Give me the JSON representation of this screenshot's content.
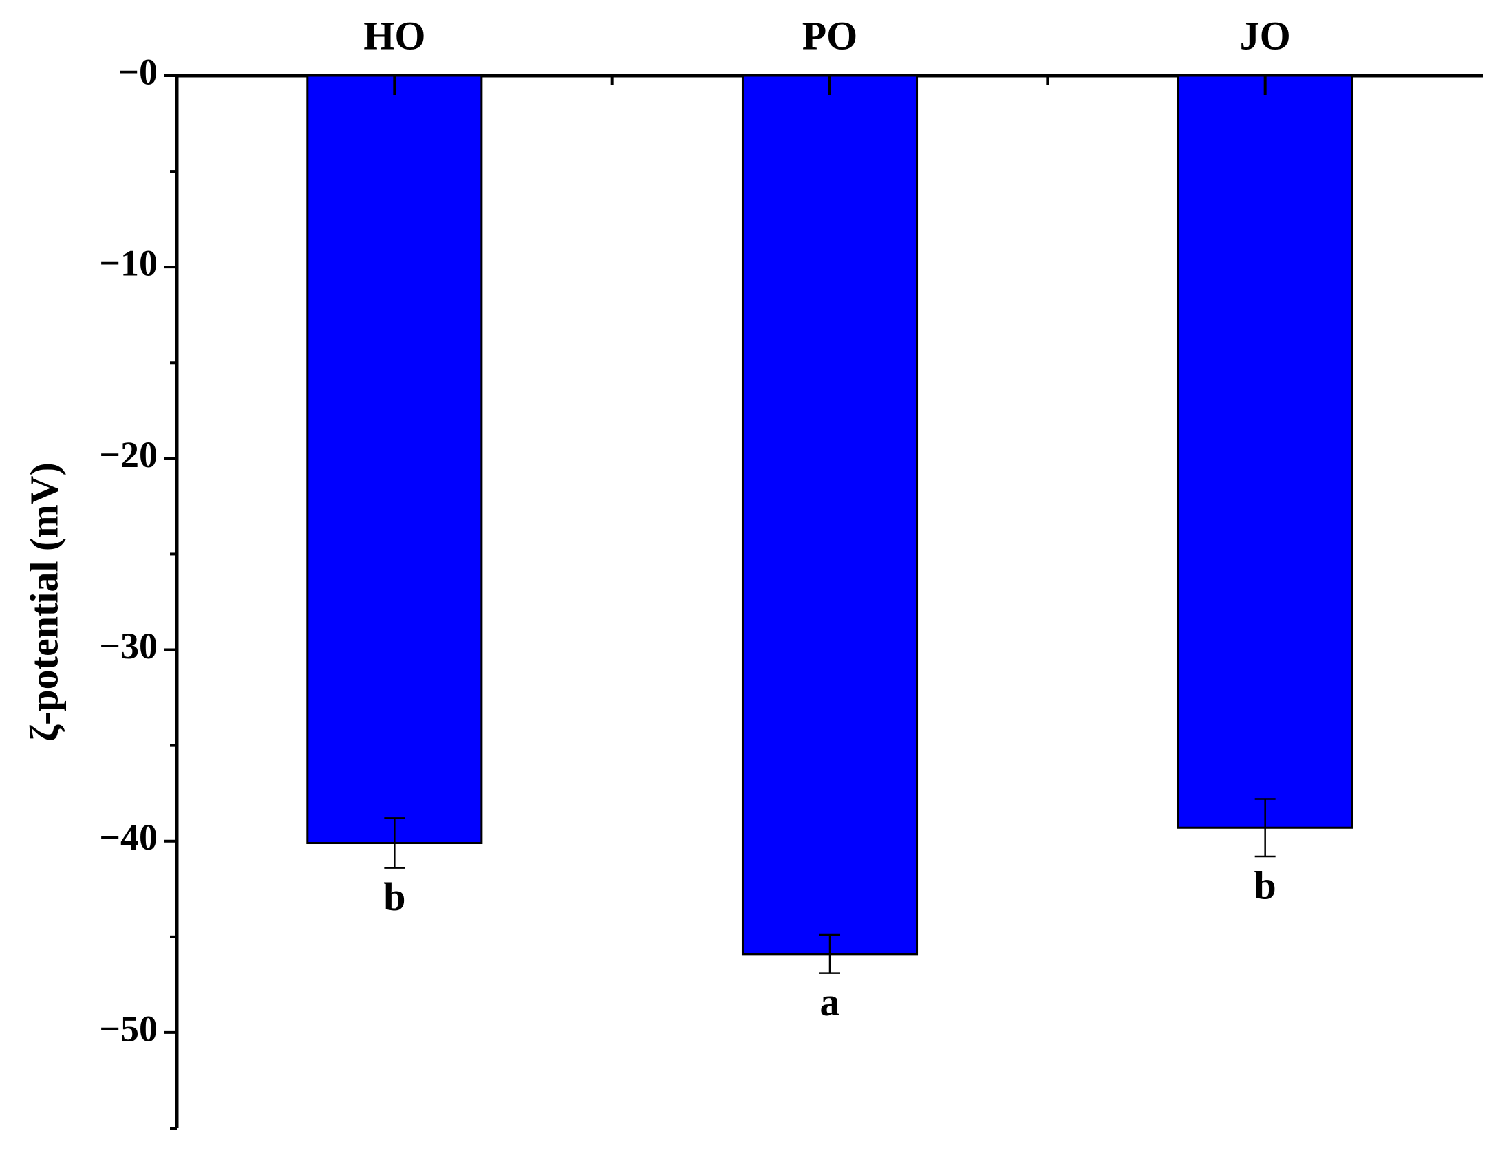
{
  "chart_data": {
    "type": "bar",
    "y_label": "ζ-potential (mV)",
    "categories": [
      "HO",
      "PO",
      "JO"
    ],
    "values": [
      -40.1,
      -45.9,
      -39.3
    ],
    "errors": [
      1.3,
      1.0,
      1.5
    ],
    "annotations": [
      "b",
      "a",
      "b"
    ],
    "color": "#0000ff",
    "ylim": [
      -55,
      0
    ],
    "yticks": [
      {
        "value": 0,
        "label": "−0"
      },
      {
        "value": -10,
        "label": "−10"
      },
      {
        "value": -20,
        "label": "−20"
      },
      {
        "value": -30,
        "label": "−30"
      },
      {
        "value": -40,
        "label": "−40"
      },
      {
        "value": -50,
        "label": "−50"
      }
    ],
    "yminorticks": [
      -5,
      -15,
      -25,
      -35,
      -45,
      -55
    ],
    "grid": false
  }
}
